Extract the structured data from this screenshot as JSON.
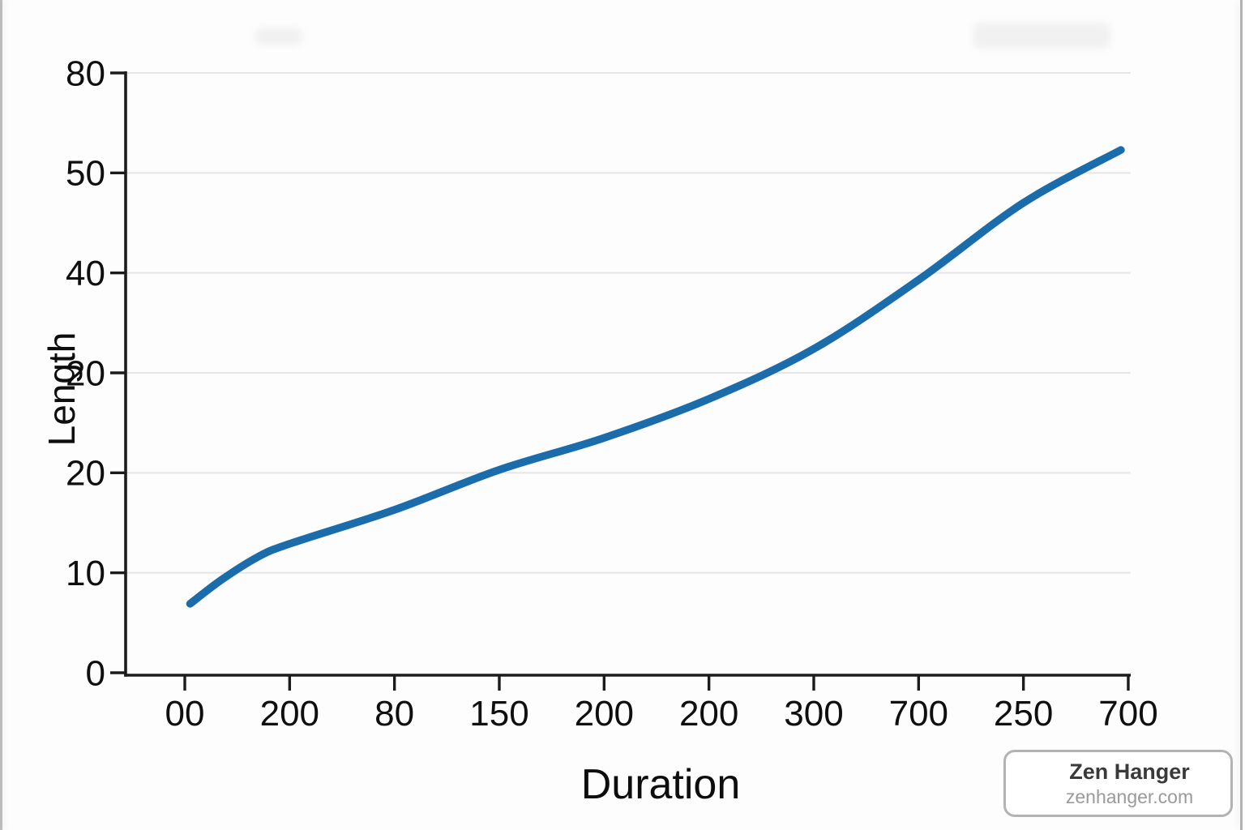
{
  "page": {
    "background": "#fdfdfd",
    "edge_border_color": "#b7b7b7"
  },
  "watermark": {
    "title": "Zen Hanger",
    "subtitle": "zenhanger.com"
  },
  "chart_data": {
    "type": "line",
    "title": "",
    "xlabel": "Duration",
    "ylabel": "Length",
    "axis_color": "#1c1c1c",
    "gridline_color": "#e6e6e6",
    "text_color": "#0f0f0f",
    "grid": "horizontal-only",
    "legend": "none",
    "y_axis_note": "tick labels are garbled; positions are uniform steps of 10 from 0 to 60",
    "y_ticks": [
      {
        "label": "0",
        "value": 0
      },
      {
        "label": "10",
        "value": 10
      },
      {
        "label": "20",
        "value": 20
      },
      {
        "label": "20",
        "value": 30
      },
      {
        "label": "40",
        "value": 40
      },
      {
        "label": "50",
        "value": 50
      },
      {
        "label": "80",
        "value": 60
      }
    ],
    "y_max": 60,
    "x_ticks": [
      {
        "label": "00",
        "pos": 0
      },
      {
        "label": "200",
        "pos": 1
      },
      {
        "label": "80",
        "pos": 2
      },
      {
        "label": "150",
        "pos": 3
      },
      {
        "label": "200",
        "pos": 4
      },
      {
        "label": "200",
        "pos": 5
      },
      {
        "label": "300",
        "pos": 6
      },
      {
        "label": "700",
        "pos": 7
      },
      {
        "label": "250",
        "pos": 8
      },
      {
        "label": "700",
        "pos": 9
      }
    ],
    "series": [
      {
        "name": "length-vs-duration-curve",
        "color": "#1a6caa",
        "stroke_width": 9.5,
        "points": [
          [
            0.05,
            6.9
          ],
          [
            0.35,
            9.3
          ],
          [
            0.7,
            11.6
          ],
          [
            1,
            12.9
          ],
          [
            2,
            16.3
          ],
          [
            3,
            20.3
          ],
          [
            4,
            23.5
          ],
          [
            5,
            27.4
          ],
          [
            6,
            32.4
          ],
          [
            7,
            39.3
          ],
          [
            8,
            47.0
          ],
          [
            8.93,
            52.3
          ]
        ]
      }
    ]
  }
}
